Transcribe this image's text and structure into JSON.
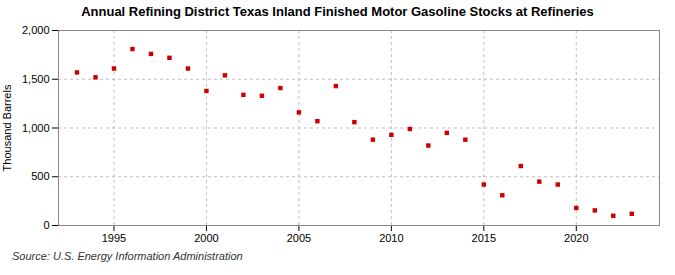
{
  "chart_data": {
    "type": "scatter",
    "title": "Annual Refining District Texas Inland Finished Motor Gasoline Stocks at Refineries",
    "ylabel": "Thousand Barrels",
    "source": "Source: U.S. Energy Information Administration",
    "x": [
      1993,
      1994,
      1995,
      1996,
      1997,
      1998,
      1999,
      2000,
      2001,
      2002,
      2003,
      2004,
      2005,
      2006,
      2007,
      2008,
      2009,
      2010,
      2011,
      2012,
      2013,
      2014,
      2015,
      2016,
      2017,
      2018,
      2019,
      2020,
      2021,
      2022,
      2023
    ],
    "values": [
      1570,
      1520,
      1610,
      1810,
      1760,
      1720,
      1610,
      1380,
      1540,
      1340,
      1330,
      1410,
      1160,
      1070,
      1430,
      1060,
      880,
      930,
      990,
      820,
      950,
      880,
      420,
      310,
      610,
      450,
      420,
      180,
      155,
      100,
      120
    ],
    "color": "#cc0000",
    "marker": "square",
    "xlim": [
      1992.0,
      2024.5
    ],
    "xticks": [
      1995,
      2000,
      2005,
      2010,
      2015,
      2020
    ],
    "ylim": [
      0,
      2000
    ],
    "yticks": [
      0,
      500,
      {
        "value": 1000,
        "label": "1,000"
      },
      {
        "value": 1500,
        "label": "1,500"
      },
      {
        "value": 2000,
        "label": "2,000"
      }
    ],
    "grid": true
  }
}
